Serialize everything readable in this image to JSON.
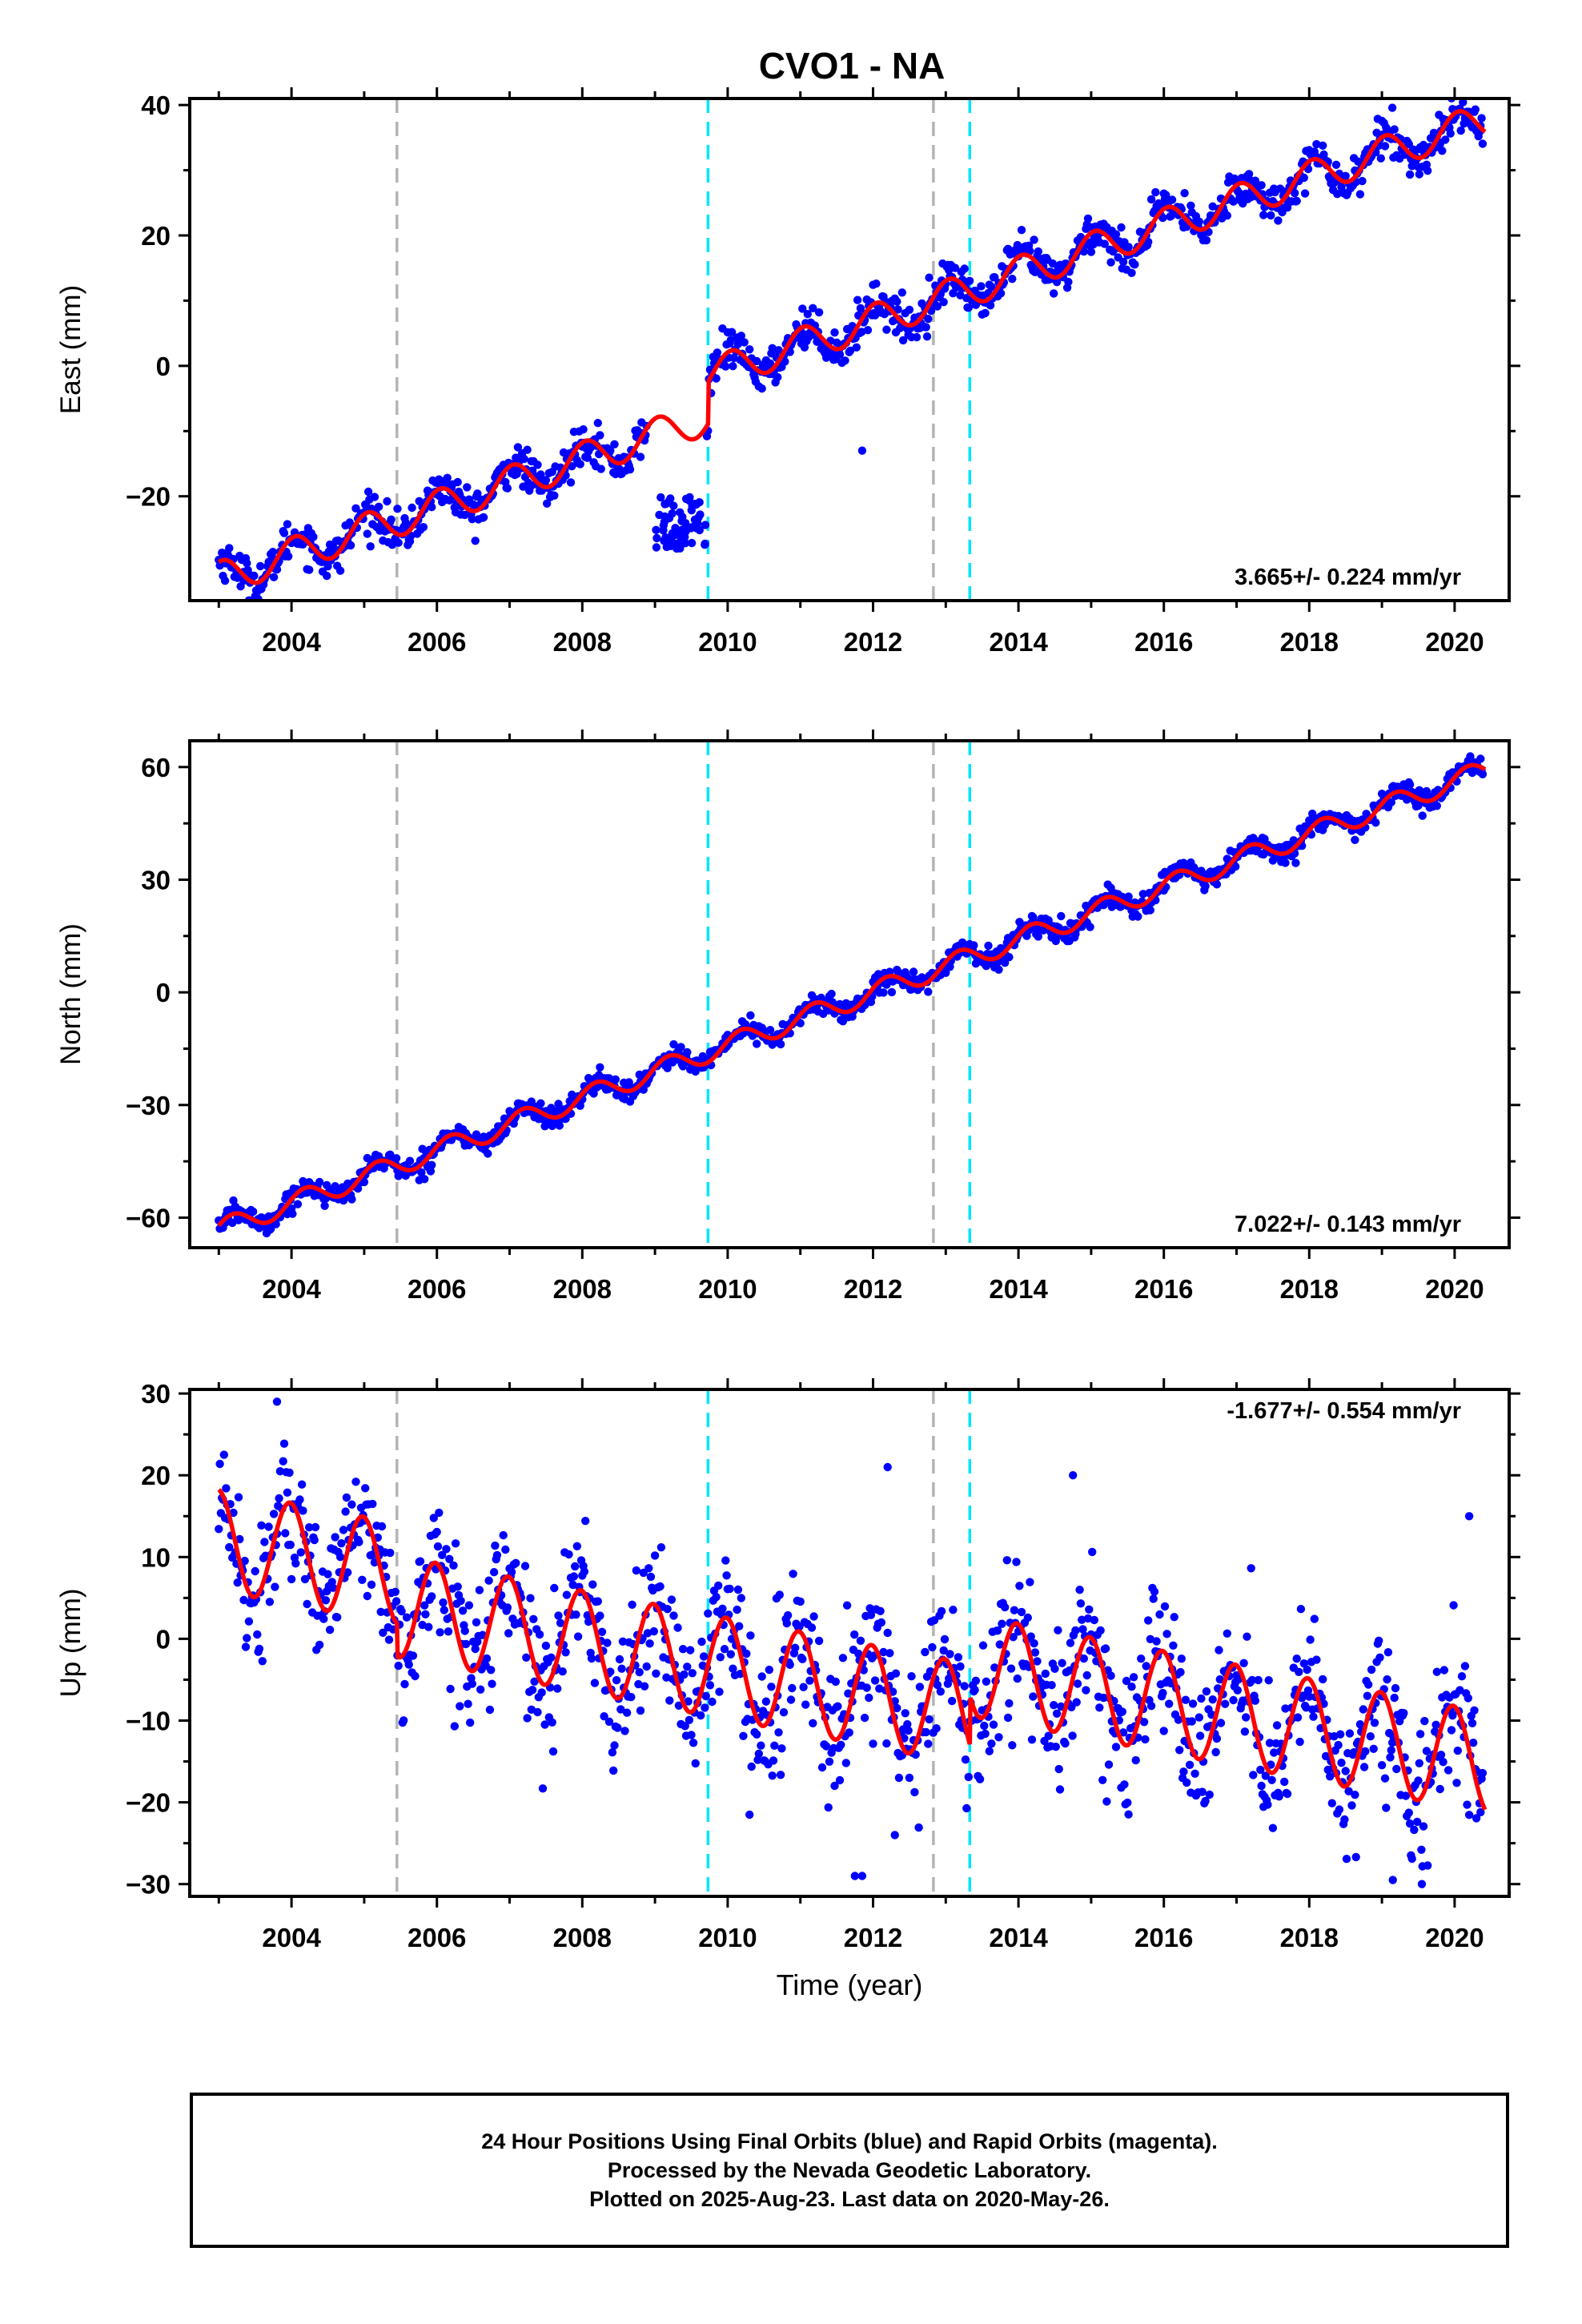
{
  "title": "CVO1 - NA",
  "colors": {
    "data_points": "#0000ff",
    "model_fit": "#ff0000",
    "gray_lines": "#b4b4b4",
    "cyan_lines": "#00e5ff"
  },
  "footer": {
    "line1": "24 Hour Positions Using Final Orbits (blue) and Rapid Orbits (magenta).",
    "line2": "Processed by the Nevada Geodetic Laboratory.",
    "line3": "Plotted on 2025-Aug-23. Last data on 2020-May-26."
  },
  "chart_data": [
    {
      "type": "scatter",
      "panel": "east",
      "title": "",
      "xlabel": "",
      "ylabel": "East (mm)",
      "rate_label": "3.665+/- 0.224 mm/yr",
      "rate_position": "bottom-right",
      "xlim": [
        2002.6,
        2020.75
      ],
      "ylim": [
        -36,
        41
      ],
      "x_ticks": [
        2004,
        2006,
        2008,
        2010,
        2012,
        2014,
        2016,
        2018,
        2020
      ],
      "x_tick_labels": [
        "2004",
        "2006",
        "2008",
        "2010",
        "2012",
        "2014",
        "2016",
        "2018",
        "2020"
      ],
      "y_ticks": [
        -20,
        0,
        20,
        40
      ],
      "y_tick_labels": [
        "−20",
        "0",
        "20",
        "40"
      ],
      "grid": false,
      "vertical_lines": [
        {
          "x": 2005.45,
          "style": "gray-dashed"
        },
        {
          "x": 2009.73,
          "style": "cyan-dashed"
        },
        {
          "x": 2012.83,
          "style": "gray-dashed"
        },
        {
          "x": 2013.33,
          "style": "cyan-dashed"
        }
      ],
      "model": {
        "rate": 3.665,
        "ref_year": 2012,
        "ref_value": 0.4,
        "annual_amplitude": 2.6,
        "annual_phase": 1.3,
        "offsets": [
          {
            "x": 2009.73,
            "value": 6.5
          }
        ],
        "gap": [
          2009.73,
          2009.73
        ]
      },
      "noise": 1.5,
      "outliers": [
        {
          "x_range": [
            2009.0,
            2009.7
          ],
          "y_range": [
            -28,
            -20
          ],
          "count": 60
        },
        {
          "x": 2011.85,
          "y": -13
        }
      ]
    },
    {
      "type": "scatter",
      "panel": "north",
      "title": "",
      "xlabel": "",
      "ylabel": "North (mm)",
      "rate_label": "7.022+/- 0.143 mm/yr",
      "rate_position": "bottom-right",
      "xlim": [
        2002.6,
        2020.75
      ],
      "ylim": [
        -68,
        67
      ],
      "x_ticks": [
        2004,
        2006,
        2008,
        2010,
        2012,
        2014,
        2016,
        2018,
        2020
      ],
      "x_tick_labels": [
        "2004",
        "2006",
        "2008",
        "2010",
        "2012",
        "2014",
        "2016",
        "2018",
        "2020"
      ],
      "y_ticks": [
        -60,
        -30,
        0,
        30,
        60
      ],
      "y_tick_labels": [
        "−60",
        "−30",
        "0",
        "30",
        "60"
      ],
      "grid": false,
      "vertical_lines": [
        {
          "x": 2005.45,
          "style": "gray-dashed"
        },
        {
          "x": 2009.73,
          "style": "cyan-dashed"
        },
        {
          "x": 2012.83,
          "style": "gray-dashed"
        },
        {
          "x": 2013.33,
          "style": "cyan-dashed"
        }
      ],
      "model": {
        "rate": 7.022,
        "ref_year": 2012,
        "ref_value": 0,
        "annual_amplitude": 2.8,
        "annual_phase": 0.4,
        "offsets": []
      },
      "noise": 1.4,
      "outliers": []
    },
    {
      "type": "scatter",
      "panel": "up",
      "title": "",
      "xlabel": "Time (year)",
      "ylabel": "Up (mm)",
      "rate_label": "-1.677+/- 0.554 mm/yr",
      "rate_position": "top-right",
      "xlim": [
        2002.6,
        2020.75
      ],
      "ylim": [
        -31.5,
        30.5
      ],
      "x_ticks": [
        2004,
        2006,
        2008,
        2010,
        2012,
        2014,
        2016,
        2018,
        2020
      ],
      "x_tick_labels": [
        "2004",
        "2006",
        "2008",
        "2010",
        "2012",
        "2014",
        "2016",
        "2018",
        "2020"
      ],
      "y_ticks": [
        -30,
        -20,
        -10,
        0,
        10,
        20,
        30
      ],
      "y_tick_labels": [
        "−30",
        "−20",
        "−10",
        "0",
        "10",
        "20",
        "30"
      ],
      "grid": false,
      "vertical_lines": [
        {
          "x": 2005.45,
          "style": "gray-dashed"
        },
        {
          "x": 2009.73,
          "style": "cyan-dashed"
        },
        {
          "x": 2012.83,
          "style": "gray-dashed"
        },
        {
          "x": 2013.33,
          "style": "cyan-dashed"
        }
      ],
      "model": {
        "rate": -1.677,
        "ref_year": 2012,
        "ref_value": -3,
        "annual_amplitude": 6.2,
        "annual_phase": 1.7,
        "offsets": [
          {
            "x": 2005.45,
            "value": -4
          },
          {
            "x": 2013.33,
            "value": 6
          }
        ]
      },
      "noise": 4.2,
      "outliers": [
        {
          "x": 2011.75,
          "y": -29
        },
        {
          "x": 2011.85,
          "y": -29
        },
        {
          "x": 2012.2,
          "y": 21
        },
        {
          "x": 2019.15,
          "y": -29.5
        },
        {
          "x": 2019.55,
          "y": -30
        },
        {
          "x": 2020.2,
          "y": 15
        },
        {
          "x": 2012.3,
          "y": -24
        },
        {
          "x": 2003.8,
          "y": 29
        },
        {
          "x": 2014.75,
          "y": 20
        }
      ]
    }
  ]
}
